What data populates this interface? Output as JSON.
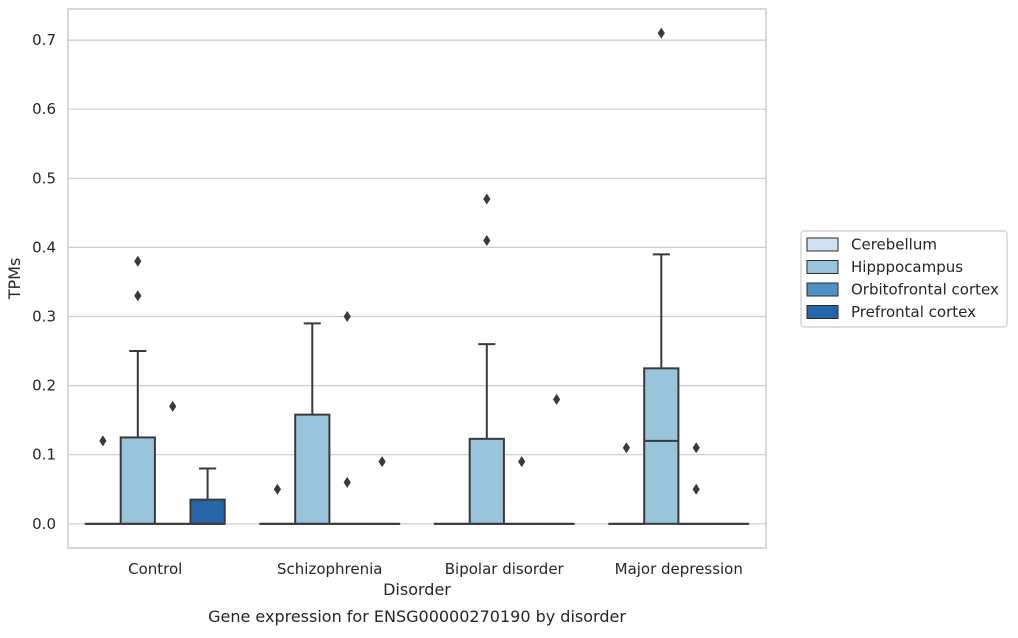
{
  "caption": "Gene expression for ENSG00000270190 by disorder",
  "colors": {
    "Cerebellum": "#d0e1f2",
    "Hipppocampus": "#9ac3dc",
    "Orbitofrontal cortex": "#4e91c4",
    "Prefrontal cortex": "#2565a8",
    "grid": "#cccccc",
    "frame": "#cccccc",
    "line": "#3a3a3a"
  },
  "chart_data": {
    "type": "box",
    "title": "",
    "xlabel": "Disorder",
    "ylabel": "TPMs",
    "ylim": [
      -0.035,
      0.745
    ],
    "yticks": [
      "0.0",
      "0.1",
      "0.2",
      "0.3",
      "0.4",
      "0.5",
      "0.6",
      "0.7"
    ],
    "grid": "horizontal",
    "legend_position": "right",
    "categories": [
      "Control",
      "Schizophrenia",
      "Bipolar disorder",
      "Major depression"
    ],
    "hue": [
      "Cerebellum",
      "Hipppocampus",
      "Orbitofrontal cortex",
      "Prefrontal cortex"
    ],
    "boxes": [
      {
        "category": "Control",
        "group": "Cerebellum",
        "q1": 0,
        "median": 0,
        "q3": 0,
        "whislo": 0,
        "whishi": 0,
        "fliers": [
          0.12
        ]
      },
      {
        "category": "Control",
        "group": "Hipppocampus",
        "q1": 0,
        "median": 0,
        "q3": 0.125,
        "whislo": 0,
        "whishi": 0.25,
        "fliers": [
          0.33,
          0.38
        ]
      },
      {
        "category": "Control",
        "group": "Orbitofrontal cortex",
        "q1": 0,
        "median": 0,
        "q3": 0,
        "whislo": 0,
        "whishi": 0,
        "fliers": [
          0.17
        ]
      },
      {
        "category": "Control",
        "group": "Prefrontal cortex",
        "q1": 0,
        "median": 0,
        "q3": 0.035,
        "whislo": 0,
        "whishi": 0.08,
        "fliers": []
      },
      {
        "category": "Schizophrenia",
        "group": "Cerebellum",
        "q1": 0,
        "median": 0,
        "q3": 0,
        "whislo": 0,
        "whishi": 0,
        "fliers": [
          0.05
        ]
      },
      {
        "category": "Schizophrenia",
        "group": "Hipppocampus",
        "q1": 0,
        "median": 0,
        "q3": 0.158,
        "whislo": 0,
        "whishi": 0.29,
        "fliers": []
      },
      {
        "category": "Schizophrenia",
        "group": "Orbitofrontal cortex",
        "q1": 0,
        "median": 0,
        "q3": 0,
        "whislo": 0,
        "whishi": 0,
        "fliers": [
          0.06,
          0.3
        ]
      },
      {
        "category": "Schizophrenia",
        "group": "Prefrontal cortex",
        "q1": 0,
        "median": 0,
        "q3": 0,
        "whislo": 0,
        "whishi": 0,
        "fliers": [
          0.09
        ]
      },
      {
        "category": "Bipolar disorder",
        "group": "Cerebellum",
        "q1": 0,
        "median": 0,
        "q3": 0,
        "whislo": 0,
        "whishi": 0,
        "fliers": []
      },
      {
        "category": "Bipolar disorder",
        "group": "Hipppocampus",
        "q1": 0,
        "median": 0,
        "q3": 0.123,
        "whislo": 0,
        "whishi": 0.26,
        "fliers": [
          0.41,
          0.47
        ]
      },
      {
        "category": "Bipolar disorder",
        "group": "Orbitofrontal cortex",
        "q1": 0,
        "median": 0,
        "q3": 0,
        "whislo": 0,
        "whishi": 0,
        "fliers": [
          0.09
        ]
      },
      {
        "category": "Bipolar disorder",
        "group": "Prefrontal cortex",
        "q1": 0,
        "median": 0,
        "q3": 0,
        "whislo": 0,
        "whishi": 0,
        "fliers": [
          0.18
        ]
      },
      {
        "category": "Major depression",
        "group": "Cerebellum",
        "q1": 0,
        "median": 0,
        "q3": 0,
        "whislo": 0,
        "whishi": 0,
        "fliers": [
          0.11
        ]
      },
      {
        "category": "Major depression",
        "group": "Hipppocampus",
        "q1": 0,
        "median": 0.12,
        "q3": 0.225,
        "whislo": 0,
        "whishi": 0.39,
        "fliers": [
          0.71
        ]
      },
      {
        "category": "Major depression",
        "group": "Orbitofrontal cortex",
        "q1": 0,
        "median": 0,
        "q3": 0,
        "whislo": 0,
        "whishi": 0,
        "fliers": [
          0.05,
          0.11
        ]
      },
      {
        "category": "Major depression",
        "group": "Prefrontal cortex",
        "q1": 0,
        "median": 0,
        "q3": 0,
        "whislo": 0,
        "whishi": 0,
        "fliers": []
      }
    ]
  }
}
